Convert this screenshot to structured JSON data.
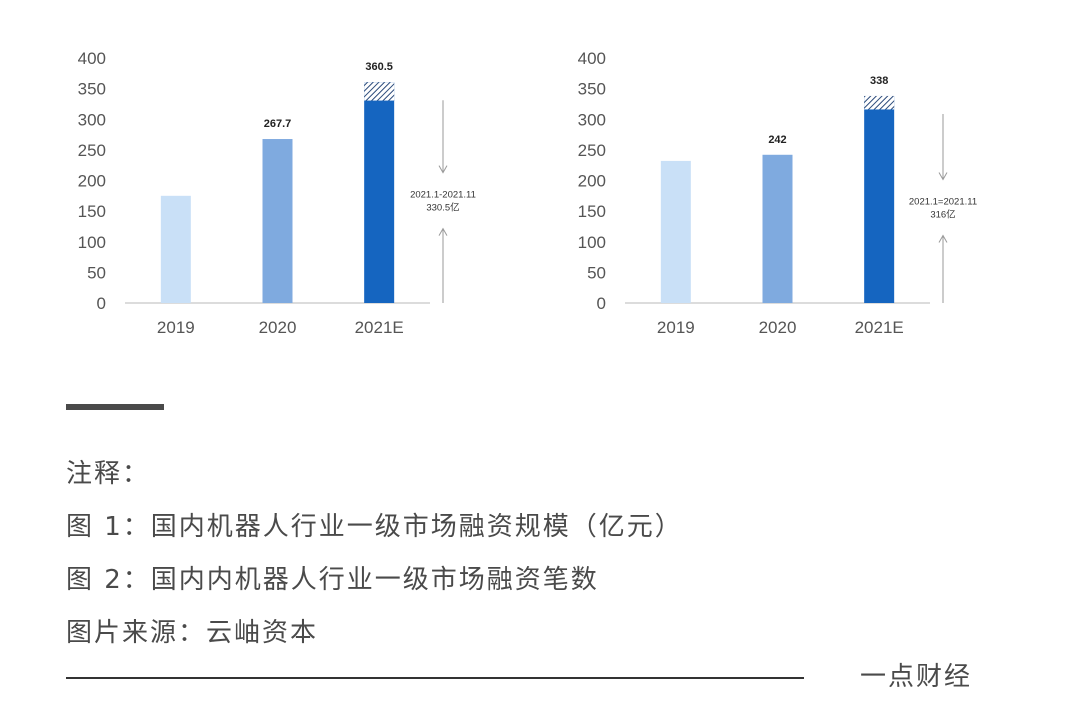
{
  "chart_data": [
    {
      "type": "bar",
      "categories": [
        "2019",
        "2020",
        "2021E"
      ],
      "values": [
        175,
        267.7,
        360.5
      ],
      "data_labels": [
        "",
        "267.7",
        "360.5"
      ],
      "hatched_top": 30,
      "bar_colors": [
        "#c9e0f7",
        "#7faadf",
        "#1565c0"
      ],
      "ylim": [
        0,
        400
      ],
      "yticks": [
        "0",
        "50",
        "100",
        "150",
        "200",
        "250",
        "300",
        "350",
        "400"
      ],
      "annotation": [
        "2021.1-2021.11",
        "330.5亿"
      ],
      "grid": false
    },
    {
      "type": "bar",
      "categories": [
        "2019",
        "2020",
        "2021E"
      ],
      "values": [
        232,
        242,
        338
      ],
      "data_labels": [
        "",
        "242",
        "338"
      ],
      "hatched_top": 22,
      "bar_colors": [
        "#c9e0f7",
        "#7faadf",
        "#1565c0"
      ],
      "ylim": [
        0,
        400
      ],
      "yticks": [
        "0",
        "50",
        "100",
        "150",
        "200",
        "250",
        "300",
        "350",
        "400"
      ],
      "annotation": [
        "2021.1=2021.11",
        "316亿"
      ],
      "grid": false
    }
  ],
  "notes": {
    "heading": "注释：",
    "line1": "图 1：国内机器人行业一级市场融资规模（亿元）",
    "line2": "图 2：国内内机器人行业一级市场融资笔数",
    "line3": "图片来源：云岫资本"
  },
  "footer": {
    "source": "一点财经"
  }
}
